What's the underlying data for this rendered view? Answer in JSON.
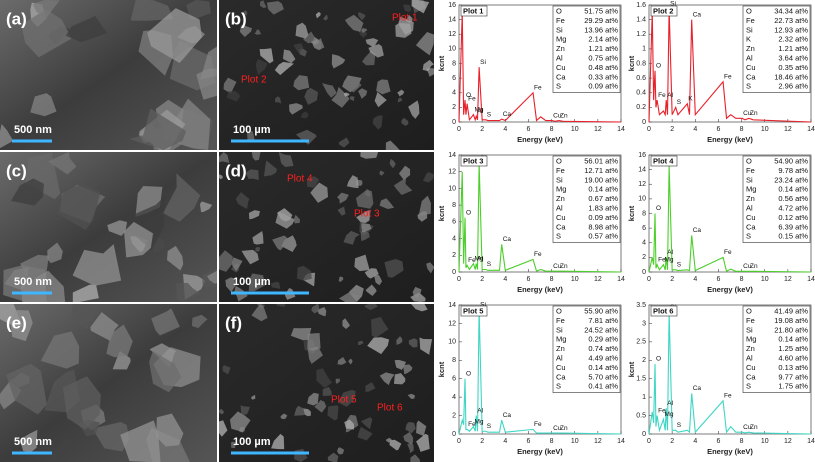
{
  "panels": [
    {
      "label": "(a)",
      "scale": "500 nm"
    },
    {
      "label": "(b)",
      "scale": "100 µm",
      "plots": [
        "Plot 1",
        "Plot 2"
      ]
    },
    {
      "label": "(c)",
      "scale": "500 nm"
    },
    {
      "label": "(d)",
      "scale": "100 µm",
      "plots": [
        "Plot 4",
        "Plot 3"
      ]
    },
    {
      "label": "(e)",
      "scale": "500 nm"
    },
    {
      "label": "(f)",
      "scale": "100 µm",
      "plots": [
        "Plot 5",
        "Plot 6"
      ]
    }
  ],
  "chart_data": [
    {
      "type": "line",
      "title": "Plot 1",
      "color": "#e8202a",
      "xlabel": "Energy (keV)",
      "ylabel": "kcnt",
      "xlim": [
        0,
        14
      ],
      "xticks": [
        0,
        2,
        4,
        6,
        8,
        10,
        12,
        14
      ],
      "ylim": [
        0,
        16
      ],
      "yticks": [
        0,
        2,
        4,
        6,
        8,
        10,
        12,
        14,
        16
      ],
      "x": [
        0,
        0.28,
        0.4,
        0.52,
        0.6,
        0.7,
        0.9,
        1.25,
        1.4,
        1.49,
        1.6,
        1.74,
        2.0,
        2.31,
        2.5,
        3.31,
        3.5,
        3.69,
        4.0,
        6.4,
        6.7,
        7.06,
        7.5,
        8.05,
        8.3,
        8.64,
        9.0,
        14
      ],
      "values": [
        0,
        15,
        1,
        3,
        1,
        2.5,
        0.3,
        1,
        0.3,
        0.8,
        0.3,
        7.5,
        0.3,
        0.3,
        0.2,
        0.2,
        0.2,
        0.4,
        0.2,
        4,
        0.2,
        0.7,
        0.2,
        0.2,
        0.1,
        0.2,
        0.1,
        0
      ],
      "point_labels": [
        null,
        null,
        null,
        "O",
        null,
        "Fe",
        null,
        "Mg",
        null,
        "Al",
        null,
        "Si",
        null,
        "S",
        null,
        null,
        null,
        "Ca",
        null,
        "Fe",
        null,
        null,
        null,
        "Cu",
        null,
        "Zn",
        null,
        null
      ],
      "table": [
        [
          "O",
          "51.75 at%"
        ],
        [
          "Fe",
          "29.29 at%"
        ],
        [
          "Si",
          "13.96 at%"
        ],
        [
          "Mg",
          "2.14 at%"
        ],
        [
          "Zn",
          "1.21 at%"
        ],
        [
          "Al",
          "0.75 at%"
        ],
        [
          "Cu",
          "0.48 at%"
        ],
        [
          "Ca",
          "0.33 at%"
        ],
        [
          "S",
          "0.09 at%"
        ]
      ]
    },
    {
      "type": "line",
      "title": "Plot 2",
      "color": "#e8202a",
      "xlabel": "Energy (keV)",
      "ylabel": "kcnt",
      "xlim": [
        0,
        14
      ],
      "xticks": [
        0,
        2,
        4,
        6,
        8,
        10,
        12,
        14
      ],
      "ylim": [
        0,
        1.6
      ],
      "yticks": [
        0,
        0.2,
        0.4,
        0.6,
        0.8,
        1,
        1.2,
        1.4,
        1.6
      ],
      "x": [
        0,
        0.28,
        0.4,
        0.52,
        0.6,
        0.7,
        0.9,
        1.25,
        1.4,
        1.49,
        1.6,
        1.74,
        2.0,
        2.31,
        2.5,
        3.31,
        3.5,
        3.69,
        4.0,
        6.4,
        6.7,
        7.06,
        7.5,
        8.05,
        8.3,
        8.64,
        9.0,
        14
      ],
      "values": [
        0,
        1.5,
        0.3,
        0.7,
        0.2,
        0.3,
        0.1,
        0.15,
        0.1,
        0.3,
        0.1,
        1.55,
        0.1,
        0.2,
        0.1,
        0.25,
        0.1,
        1.4,
        0.1,
        0.55,
        0.05,
        0.1,
        0.05,
        0.05,
        0.03,
        0.05,
        0.03,
        0
      ],
      "point_labels": [
        null,
        null,
        null,
        "O",
        null,
        "Fe",
        null,
        null,
        null,
        "Al",
        null,
        "Si",
        null,
        "S",
        null,
        "K",
        null,
        "Ca",
        null,
        "Fe",
        null,
        null,
        null,
        "Cu",
        null,
        "Zn",
        null,
        null
      ],
      "table": [
        [
          "O",
          "34.34 at%"
        ],
        [
          "Fe",
          "22.73 at%"
        ],
        [
          "Si",
          "12.93 at%"
        ],
        [
          "K",
          "2.32 at%"
        ],
        [
          "Zn",
          "1.21 at%"
        ],
        [
          "Al",
          "3.64 at%"
        ],
        [
          "Cu",
          "0.35 at%"
        ],
        [
          "Ca",
          "18.46 at%"
        ],
        [
          "S",
          "2.96 at%"
        ]
      ]
    },
    {
      "type": "line",
      "title": "Plot 3",
      "color": "#4ccf2a",
      "xlabel": "Energy (keV)",
      "ylabel": "kcnt",
      "xlim": [
        0,
        14
      ],
      "xticks": [
        0,
        2,
        4,
        6,
        8,
        10,
        12,
        14
      ],
      "ylim": [
        0,
        14
      ],
      "yticks": [
        0,
        2,
        4,
        6,
        8,
        10,
        12,
        14
      ],
      "x": [
        0,
        0.28,
        0.4,
        0.52,
        0.6,
        0.7,
        0.9,
        1.25,
        1.4,
        1.49,
        1.6,
        1.74,
        2.0,
        2.31,
        2.5,
        3.31,
        3.5,
        3.69,
        4.0,
        6.4,
        6.7,
        7.06,
        7.5,
        8.05,
        8.3,
        8.64,
        9.0,
        14
      ],
      "values": [
        0,
        12,
        1,
        6.5,
        0.5,
        0.8,
        0.3,
        1,
        0.3,
        1,
        0.3,
        13,
        0.3,
        0.3,
        0.2,
        0.2,
        0.2,
        3.3,
        0.2,
        1.5,
        0.1,
        0.3,
        0.1,
        0.1,
        0.1,
        0.1,
        0.1,
        0
      ],
      "point_labels": [
        null,
        null,
        null,
        "O",
        null,
        "Fe",
        null,
        "Mg",
        null,
        "Al",
        null,
        "Si",
        null,
        "S",
        null,
        null,
        null,
        "Ca",
        null,
        "Fe",
        null,
        null,
        null,
        "Cu",
        null,
        "Zn",
        null,
        null
      ],
      "table": [
        [
          "O",
          "56.01 at%"
        ],
        [
          "Fe",
          "12.71 at%"
        ],
        [
          "Si",
          "19.00 at%"
        ],
        [
          "Mg",
          "0.14 at%"
        ],
        [
          "Zn",
          "0.67 at%"
        ],
        [
          "Al",
          "1.83 at%"
        ],
        [
          "Cu",
          "0.09 at%"
        ],
        [
          "Ca",
          "8.98 at%"
        ],
        [
          "S",
          "0.57 at%"
        ]
      ]
    },
    {
      "type": "line",
      "title": "Plot 4",
      "color": "#4ccf2a",
      "xlabel": "Energy (keV)",
      "ylabel": "kcnt",
      "xlim": [
        0,
        14
      ],
      "xticks": [
        0,
        2,
        4,
        6,
        8,
        10,
        12,
        14
      ],
      "ylim": [
        0,
        16
      ],
      "yticks": [
        0,
        2,
        4,
        6,
        8,
        10,
        12,
        14,
        16
      ],
      "x": [
        0,
        0.28,
        0.4,
        0.52,
        0.6,
        0.7,
        0.9,
        1.25,
        1.4,
        1.49,
        1.6,
        1.74,
        2.0,
        2.31,
        2.5,
        3.31,
        3.5,
        3.69,
        4.0,
        6.4,
        6.7,
        7.06,
        7.5,
        8.05,
        8.3,
        8.64,
        9.0,
        14
      ],
      "values": [
        0,
        2,
        1,
        8,
        0.5,
        1,
        0.3,
        1,
        0.3,
        2,
        0.3,
        14.5,
        0.3,
        0.3,
        0.2,
        0.3,
        0.2,
        5,
        0.2,
        2,
        0.1,
        0.4,
        0.1,
        0.1,
        0.1,
        0.1,
        0.1,
        0
      ],
      "point_labels": [
        null,
        null,
        null,
        "O",
        null,
        "Fe",
        null,
        "Mg",
        null,
        "Al",
        null,
        "Si",
        null,
        "S",
        null,
        null,
        null,
        "Ca",
        null,
        "Fe",
        null,
        null,
        null,
        "Cu",
        null,
        "Zn",
        null,
        null
      ],
      "table": [
        [
          "O",
          "54.90 at%"
        ],
        [
          "Fe",
          "9.78 at%"
        ],
        [
          "Si",
          "23.24 at%"
        ],
        [
          "Mg",
          "0.14 at%"
        ],
        [
          "Zn",
          "0.56 at%"
        ],
        [
          "Al",
          "4.72 at%"
        ],
        [
          "Cu",
          "0.12 at%"
        ],
        [
          "Ca",
          "6.39 at%"
        ],
        [
          "S",
          "0.15 at%"
        ]
      ]
    },
    {
      "type": "line",
      "title": "Plot 5",
      "color": "#3fd6c4",
      "xlabel": "Energy (keV)",
      "ylabel": "kcnt",
      "xlim": [
        0,
        14
      ],
      "xticks": [
        0,
        2,
        4,
        6,
        8,
        10,
        12,
        14
      ],
      "ylim": [
        0,
        14
      ],
      "yticks": [
        0,
        2,
        4,
        6,
        8,
        10,
        12,
        14
      ],
      "x": [
        0,
        0.28,
        0.4,
        0.52,
        0.6,
        0.7,
        0.9,
        1.25,
        1.4,
        1.49,
        1.6,
        1.74,
        2.0,
        2.31,
        2.5,
        3.31,
        3.5,
        3.69,
        4.0,
        6.4,
        6.7,
        7.06,
        7.5,
        8.05,
        8.3,
        8.64,
        9.0,
        14
      ],
      "values": [
        0,
        1.5,
        1,
        6,
        0.5,
        0.5,
        0.3,
        0.8,
        0.3,
        2,
        0.3,
        13.5,
        0.3,
        0.3,
        0.2,
        0.2,
        0.2,
        1.5,
        0.2,
        0.5,
        0.1,
        0.1,
        0.1,
        0.1,
        0.1,
        0.1,
        0.1,
        0
      ],
      "point_labels": [
        null,
        null,
        null,
        "O",
        null,
        "Fe",
        null,
        "Mg",
        null,
        "Al",
        null,
        "Si",
        null,
        "S",
        null,
        null,
        null,
        "Ca",
        null,
        "Fe",
        null,
        null,
        null,
        "Cu",
        null,
        "Zn",
        null,
        null
      ],
      "table": [
        [
          "O",
          "55.90 at%"
        ],
        [
          "Fe",
          "7.81 at%"
        ],
        [
          "Si",
          "24.52 at%"
        ],
        [
          "Mg",
          "0.29 at%"
        ],
        [
          "Zn",
          "0.74 at%"
        ],
        [
          "Al",
          "4.49 at%"
        ],
        [
          "Cu",
          "0.14 at%"
        ],
        [
          "Ca",
          "5.70 at%"
        ],
        [
          "S",
          "0.41 at%"
        ]
      ]
    },
    {
      "type": "line",
      "title": "Plot 6",
      "color": "#3fd6c4",
      "xlabel": "Energy (keV)",
      "ylabel": "kcnt",
      "xlim": [
        0,
        14
      ],
      "xticks": [
        0,
        2,
        4,
        6,
        8,
        10,
        12,
        14
      ],
      "ylim": [
        0,
        3.5
      ],
      "yticks": [
        0,
        0.5,
        1,
        1.5,
        2,
        2.5,
        3,
        3.5
      ],
      "x": [
        0,
        0.28,
        0.4,
        0.52,
        0.6,
        0.7,
        0.9,
        1.25,
        1.4,
        1.49,
        1.6,
        1.74,
        2.0,
        2.31,
        2.5,
        3.31,
        3.5,
        3.69,
        4.0,
        6.4,
        6.7,
        7.06,
        7.5,
        8.05,
        8.3,
        8.64,
        9.0,
        14
      ],
      "values": [
        0,
        0.6,
        0.3,
        1.9,
        0.2,
        0.5,
        0.1,
        0.4,
        0.1,
        0.7,
        0.1,
        3.3,
        0.1,
        0.1,
        0.05,
        0.1,
        0.05,
        1.1,
        0.05,
        0.9,
        0.05,
        0.2,
        0.05,
        0.05,
        0.03,
        0.05,
        0.03,
        0
      ],
      "point_labels": [
        null,
        null,
        null,
        "O",
        null,
        "Fe",
        null,
        "Mg",
        null,
        "Al",
        null,
        "Si",
        null,
        "S",
        null,
        null,
        null,
        "Ca",
        null,
        "Fe",
        null,
        null,
        null,
        "Cu",
        null,
        "Zn",
        null,
        null
      ],
      "table": [
        [
          "O",
          "41.49 at%"
        ],
        [
          "Fe",
          "19.08 at%"
        ],
        [
          "Si",
          "21.80 at%"
        ],
        [
          "Mg",
          "0.14 at%"
        ],
        [
          "Zn",
          "1.25 at%"
        ],
        [
          "Al",
          "4.60 at%"
        ],
        [
          "Cu",
          "0.13 at%"
        ],
        [
          "Ca",
          "9.77 at%"
        ],
        [
          "S",
          "1.75 at%"
        ]
      ]
    }
  ]
}
